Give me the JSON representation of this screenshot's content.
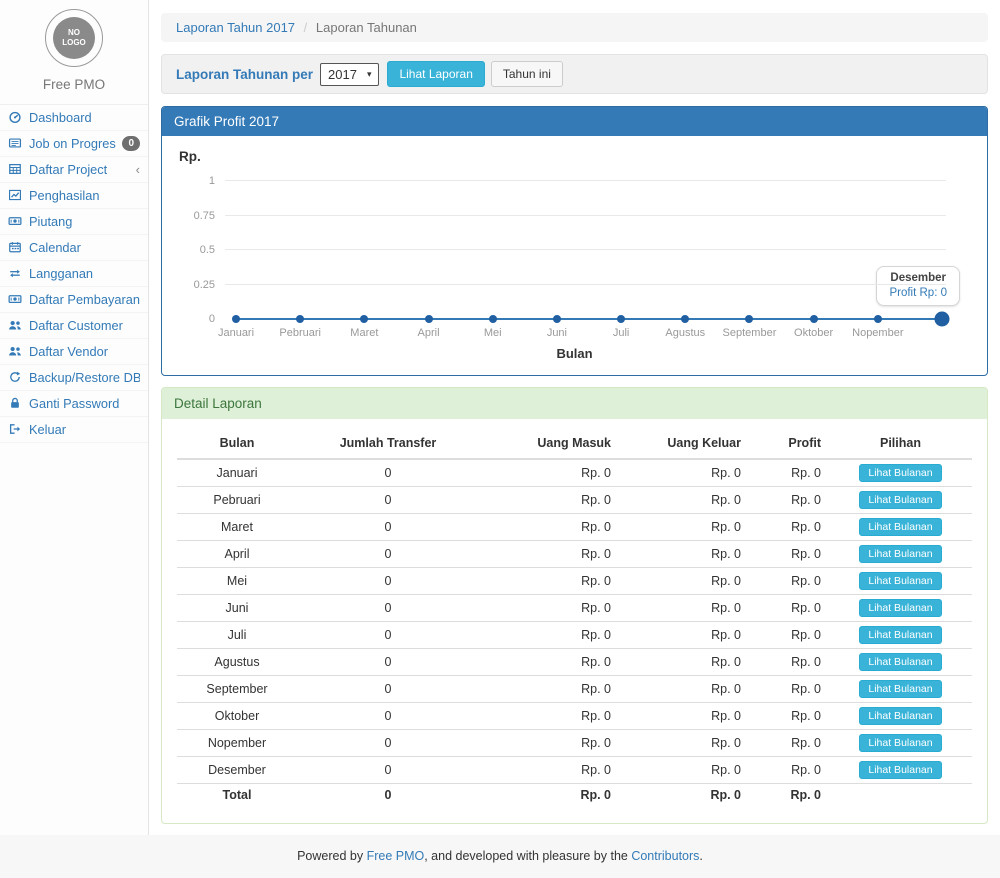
{
  "app": {
    "name": "Free PMO",
    "logo_text": "NO LOGO"
  },
  "sidebar": {
    "items": [
      {
        "label": "Dashboard",
        "icon": "dashboard-icon"
      },
      {
        "label": "Job on Progress",
        "icon": "newspaper-icon",
        "badge": "0"
      },
      {
        "label": "Daftar Project",
        "icon": "table-icon",
        "chevron": "‹"
      },
      {
        "label": "Penghasilan",
        "icon": "line-chart-icon"
      },
      {
        "label": "Piutang",
        "icon": "money-icon"
      },
      {
        "label": "Calendar",
        "icon": "calendar-icon"
      },
      {
        "label": "Langganan",
        "icon": "retweet-icon"
      },
      {
        "label": "Daftar Pembayaran",
        "icon": "money-icon"
      },
      {
        "label": "Daftar Customer",
        "icon": "users-icon"
      },
      {
        "label": "Daftar Vendor",
        "icon": "users-icon"
      },
      {
        "label": "Backup/Restore DB",
        "icon": "refresh-icon"
      },
      {
        "label": "Ganti Password",
        "icon": "lock-icon"
      },
      {
        "label": "Keluar",
        "icon": "sign-out-icon"
      }
    ]
  },
  "breadcrumb": {
    "link": "Laporan Tahun 2017",
    "divider": "/",
    "current": "Laporan Tahunan"
  },
  "filter": {
    "label": "Laporan Tahunan per",
    "year": "2017",
    "caret": "▾",
    "view_button": "Lihat Laporan",
    "this_year_button": "Tahun ini"
  },
  "chart": {
    "title": "Grafik Profit 2017",
    "y_axis_label": "Rp.",
    "x_axis_label": "Bulan",
    "y_ticks": [
      "1",
      "0.75",
      "0.5",
      "0.25",
      "0"
    ],
    "months": [
      "Januari",
      "Pebruari",
      "Maret",
      "April",
      "Mei",
      "Juni",
      "Juli",
      "Agustus",
      "September",
      "Oktober",
      "Nopember",
      "Desember"
    ],
    "tooltip": {
      "title": "Desember",
      "text": "Profit Rp: 0"
    }
  },
  "chart_data": {
    "type": "line",
    "title": "Grafik Profit 2017",
    "xlabel": "Bulan",
    "ylabel": "Rp.",
    "x": [
      "Januari",
      "Pebruari",
      "Maret",
      "April",
      "Mei",
      "Juni",
      "Juli",
      "Agustus",
      "September",
      "Oktober",
      "Nopember",
      "Desember"
    ],
    "series": [
      {
        "name": "Profit",
        "values": [
          0,
          0,
          0,
          0,
          0,
          0,
          0,
          0,
          0,
          0,
          0,
          0
        ]
      }
    ],
    "ylim": [
      0,
      1
    ],
    "y_ticks": [
      0,
      0.25,
      0.5,
      0.75,
      1
    ],
    "grid": true,
    "legend_position": "none",
    "hovered_point": {
      "x": "Desember",
      "label": "Profit Rp: 0"
    }
  },
  "table": {
    "title": "Detail Laporan",
    "headers": [
      "Bulan",
      "Jumlah Transfer",
      "Uang Masuk",
      "Uang Keluar",
      "Profit",
      "Pilihan"
    ],
    "action_label": "Lihat Bulanan",
    "rows": [
      [
        "Januari",
        "0",
        "Rp. 0",
        "Rp. 0",
        "Rp. 0",
        "Lihat Bulanan"
      ],
      [
        "Pebruari",
        "0",
        "Rp. 0",
        "Rp. 0",
        "Rp. 0",
        "Lihat Bulanan"
      ],
      [
        "Maret",
        "0",
        "Rp. 0",
        "Rp. 0",
        "Rp. 0",
        "Lihat Bulanan"
      ],
      [
        "April",
        "0",
        "Rp. 0",
        "Rp. 0",
        "Rp. 0",
        "Lihat Bulanan"
      ],
      [
        "Mei",
        "0",
        "Rp. 0",
        "Rp. 0",
        "Rp. 0",
        "Lihat Bulanan"
      ],
      [
        "Juni",
        "0",
        "Rp. 0",
        "Rp. 0",
        "Rp. 0",
        "Lihat Bulanan"
      ],
      [
        "Juli",
        "0",
        "Rp. 0",
        "Rp. 0",
        "Rp. 0",
        "Lihat Bulanan"
      ],
      [
        "Agustus",
        "0",
        "Rp. 0",
        "Rp. 0",
        "Rp. 0",
        "Lihat Bulanan"
      ],
      [
        "September",
        "0",
        "Rp. 0",
        "Rp. 0",
        "Rp. 0",
        "Lihat Bulanan"
      ],
      [
        "Oktober",
        "0",
        "Rp. 0",
        "Rp. 0",
        "Rp. 0",
        "Lihat Bulanan"
      ],
      [
        "Nopember",
        "0",
        "Rp. 0",
        "Rp. 0",
        "Rp. 0",
        "Lihat Bulanan"
      ],
      [
        "Desember",
        "0",
        "Rp. 0",
        "Rp. 0",
        "Rp. 0",
        "Lihat Bulanan"
      ]
    ],
    "total_row": [
      "Total",
      "0",
      "Rp. 0",
      "Rp. 0",
      "Rp. 0",
      ""
    ]
  },
  "footer": {
    "prefix": "Powered by ",
    "link1": "Free PMO",
    "middle": ", and developed with pleasure by the ",
    "link2": "Contributors",
    "suffix": "."
  },
  "colors": {
    "accent_blue": "#337ab7",
    "panel_primary_bg": "#337ab7",
    "panel_success_bg": "#dff0d8",
    "panel_success_text": "#3c763d",
    "info_button_bg": "#39b3d7",
    "chart_line": "#3379b5",
    "chart_point": "#1f5fa2",
    "badge_bg": "#6f6f6f"
  }
}
